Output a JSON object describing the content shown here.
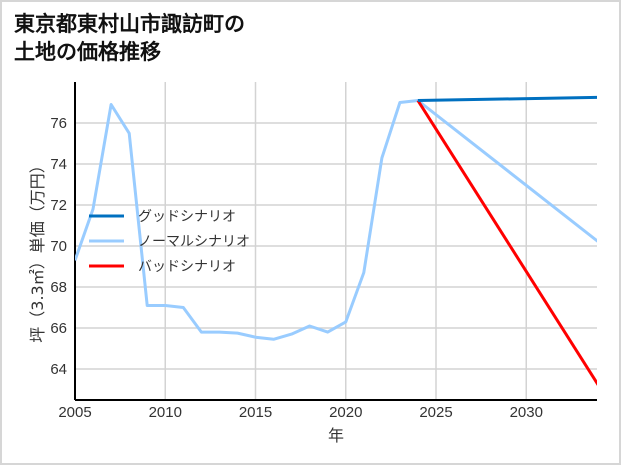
{
  "title_line1": "東京都東村山市諏訪町の",
  "title_line2": "土地の価格推移",
  "chart_data": {
    "type": "line",
    "title": "東京都東村山市諏訪町の土地の価格推移",
    "xlabel": "年",
    "ylabel": "坪（3.3㎡）単価（万円）",
    "xlim": [
      2005,
      2034
    ],
    "ylim": [
      62.5,
      78
    ],
    "x_ticks": [
      2005,
      2010,
      2015,
      2020,
      2025,
      2030
    ],
    "y_ticks": [
      64,
      66,
      68,
      70,
      72,
      74,
      76
    ],
    "grid": true,
    "legend_position": "center-left",
    "series": [
      {
        "name": "グッドシナリオ",
        "color": "#0070c0",
        "x": [
          2024,
          2034
        ],
        "values": [
          77.1,
          77.25
        ]
      },
      {
        "name": "ノーマルシナリオ",
        "color": "#99ccff",
        "x": [
          2005,
          2006,
          2007,
          2008,
          2009,
          2010,
          2011,
          2012,
          2013,
          2014,
          2015,
          2016,
          2017,
          2018,
          2019,
          2020,
          2021,
          2022,
          2023,
          2024,
          2034
        ],
        "values": [
          69.3,
          71.8,
          76.9,
          75.5,
          67.1,
          67.1,
          67.0,
          65.8,
          65.8,
          65.75,
          65.55,
          65.45,
          65.7,
          66.1,
          65.8,
          66.3,
          68.7,
          74.3,
          77.0,
          77.1,
          70.2
        ]
      },
      {
        "name": "バッドシナリオ",
        "color": "#ff0000",
        "x": [
          2024,
          2034
        ],
        "values": [
          77.1,
          63.2
        ]
      }
    ]
  }
}
